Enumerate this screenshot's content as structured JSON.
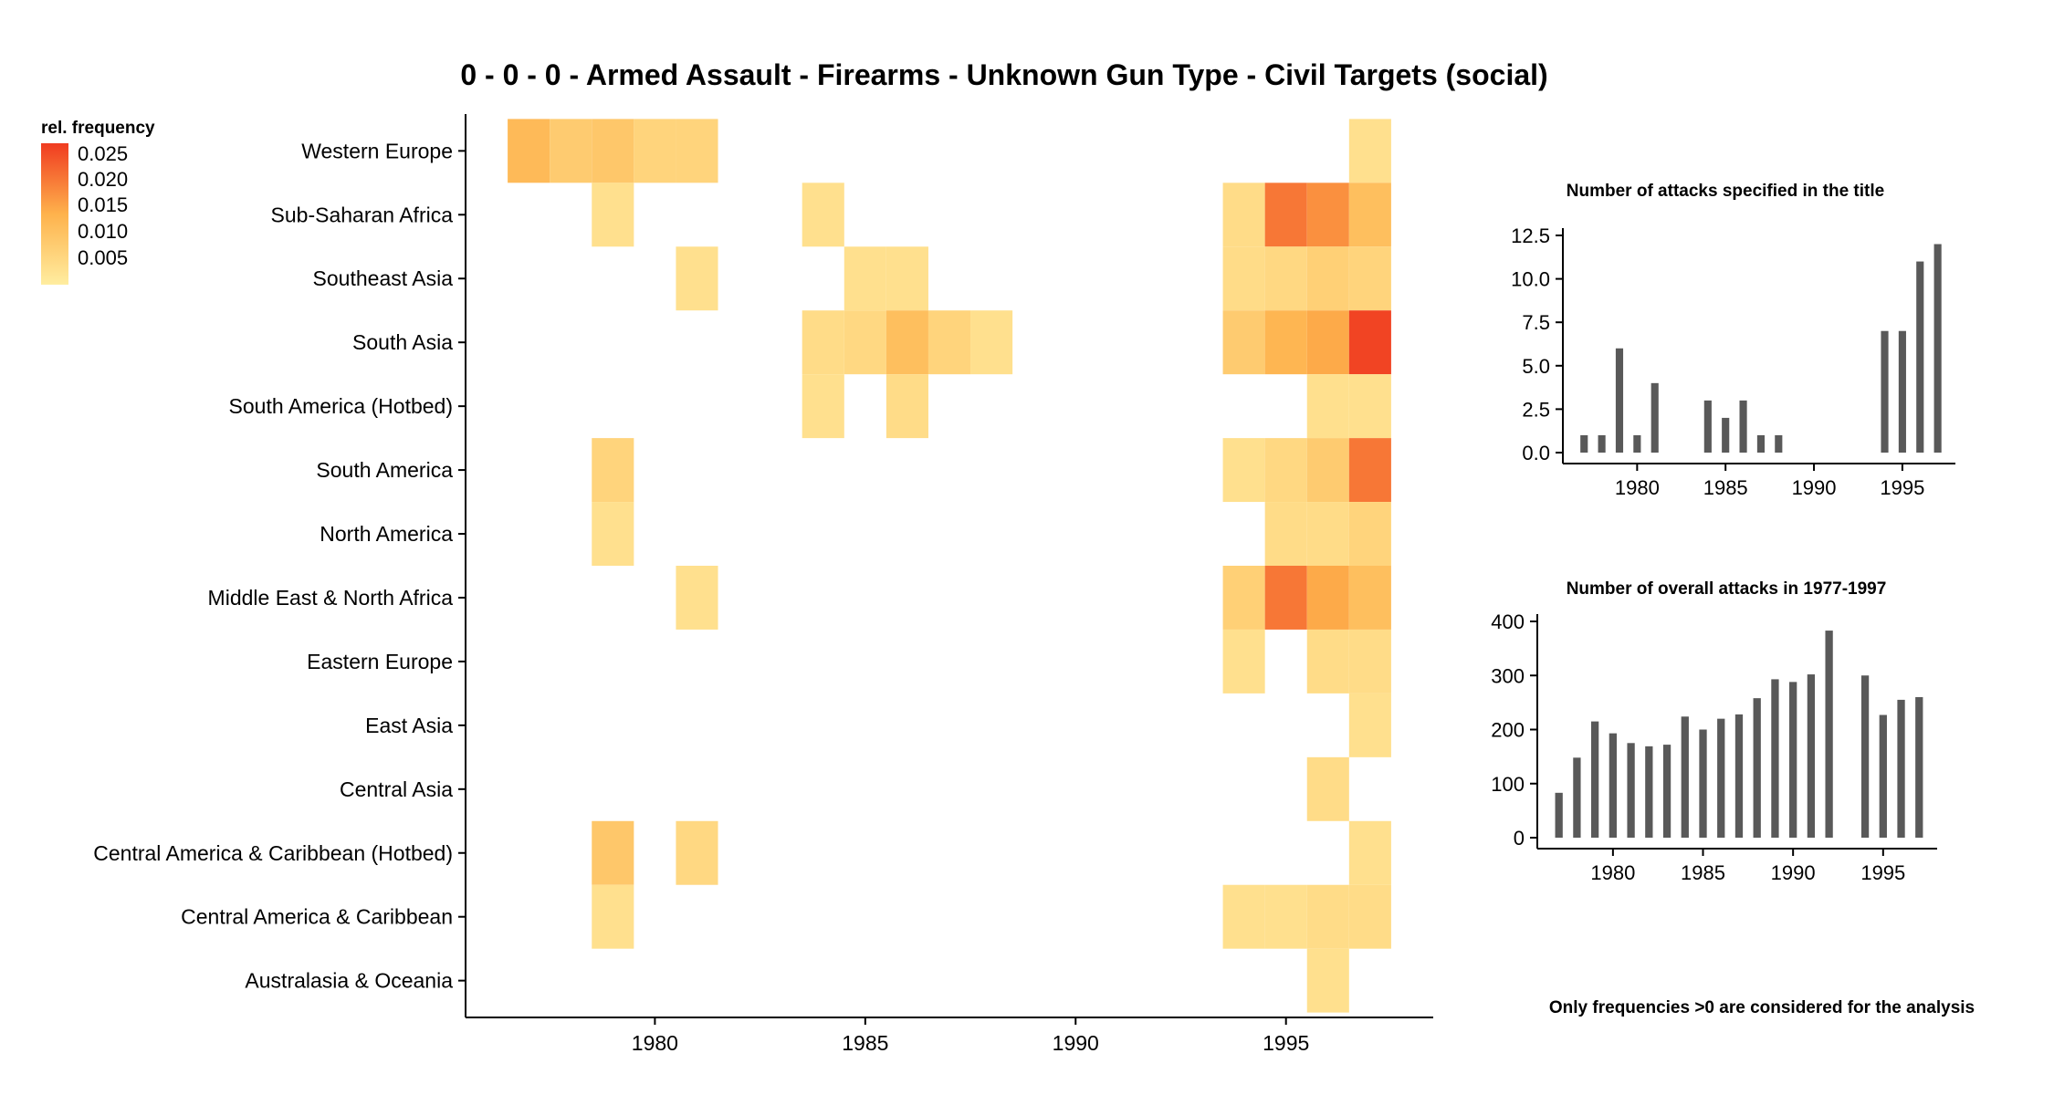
{
  "title": "0 - 0 - 0 - Armed Assault - Firearms - Unknown Gun Type - Civil Targets (social)",
  "footnote": "Only frequencies >0 are considered for the analysis",
  "colors": {
    "low": "#FFEDA0",
    "mid": "#FEB24C",
    "high": "#F03B20",
    "bar": "#595959"
  },
  "legend": {
    "title": "rel. frequency",
    "ticks": [
      "0.025",
      "0.020",
      "0.015",
      "0.010",
      "0.005"
    ]
  },
  "chart_data": [
    {
      "type": "heatmap",
      "title": "0 - 0 - 0 - Armed Assault - Firearms - Unknown Gun Type - Civil Targets (social)",
      "x_tick_labels": [
        "1980",
        "1985",
        "1990",
        "1995"
      ],
      "x_ticks": [
        1980,
        1985,
        1990,
        1995
      ],
      "xlim": [
        1975.5,
        1998.5
      ],
      "color_range": [
        0.0,
        0.028
      ],
      "regions": [
        "Western Europe",
        "Sub-Saharan Africa",
        "Southeast Asia",
        "South Asia",
        "South America (Hotbed)",
        "South America",
        "North America",
        "Middle East & North Africa",
        "Eastern Europe",
        "East Asia",
        "Central Asia",
        "Central America & Caribbean (Hotbed)",
        "Central America & Caribbean",
        "Australasia & Oceania"
      ],
      "cells": [
        {
          "region": "Western Europe",
          "year": 1977,
          "value": 0.012
        },
        {
          "region": "Western Europe",
          "year": 1978,
          "value": 0.008
        },
        {
          "region": "Western Europe",
          "year": 1979,
          "value": 0.009
        },
        {
          "region": "Western Europe",
          "year": 1980,
          "value": 0.006
        },
        {
          "region": "Western Europe",
          "year": 1981,
          "value": 0.006
        },
        {
          "region": "Western Europe",
          "year": 1997,
          "value": 0.003
        },
        {
          "region": "Sub-Saharan Africa",
          "year": 1979,
          "value": 0.003
        },
        {
          "region": "Sub-Saharan Africa",
          "year": 1984,
          "value": 0.003
        },
        {
          "region": "Sub-Saharan Africa",
          "year": 1994,
          "value": 0.004
        },
        {
          "region": "Sub-Saharan Africa",
          "year": 1995,
          "value": 0.021
        },
        {
          "region": "Sub-Saharan Africa",
          "year": 1996,
          "value": 0.018
        },
        {
          "region": "Sub-Saharan Africa",
          "year": 1997,
          "value": 0.011
        },
        {
          "region": "Southeast Asia",
          "year": 1981,
          "value": 0.003
        },
        {
          "region": "Southeast Asia",
          "year": 1985,
          "value": 0.003
        },
        {
          "region": "Southeast Asia",
          "year": 1986,
          "value": 0.003
        },
        {
          "region": "Southeast Asia",
          "year": 1994,
          "value": 0.004
        },
        {
          "region": "Southeast Asia",
          "year": 1995,
          "value": 0.005
        },
        {
          "region": "Southeast Asia",
          "year": 1996,
          "value": 0.007
        },
        {
          "region": "Southeast Asia",
          "year": 1997,
          "value": 0.006
        },
        {
          "region": "South Asia",
          "year": 1984,
          "value": 0.004
        },
        {
          "region": "South Asia",
          "year": 1985,
          "value": 0.005
        },
        {
          "region": "South Asia",
          "year": 1986,
          "value": 0.011
        },
        {
          "region": "South Asia",
          "year": 1987,
          "value": 0.006
        },
        {
          "region": "South Asia",
          "year": 1988,
          "value": 0.003
        },
        {
          "region": "South Asia",
          "year": 1994,
          "value": 0.008
        },
        {
          "region": "South Asia",
          "year": 1995,
          "value": 0.013
        },
        {
          "region": "South Asia",
          "year": 1996,
          "value": 0.015
        },
        {
          "region": "South Asia",
          "year": 1997,
          "value": 0.027
        },
        {
          "region": "South America (Hotbed)",
          "year": 1984,
          "value": 0.003
        },
        {
          "region": "South America (Hotbed)",
          "year": 1986,
          "value": 0.004
        },
        {
          "region": "South America (Hotbed)",
          "year": 1996,
          "value": 0.003
        },
        {
          "region": "South America (Hotbed)",
          "year": 1997,
          "value": 0.003
        },
        {
          "region": "South America",
          "year": 1979,
          "value": 0.006
        },
        {
          "region": "South America",
          "year": 1994,
          "value": 0.003
        },
        {
          "region": "South America",
          "year": 1995,
          "value": 0.005
        },
        {
          "region": "South America",
          "year": 1996,
          "value": 0.008
        },
        {
          "region": "South America",
          "year": 1997,
          "value": 0.021
        },
        {
          "region": "North America",
          "year": 1979,
          "value": 0.003
        },
        {
          "region": "North America",
          "year": 1995,
          "value": 0.004
        },
        {
          "region": "North America",
          "year": 1996,
          "value": 0.004
        },
        {
          "region": "North America",
          "year": 1997,
          "value": 0.006
        },
        {
          "region": "Middle East & North Africa",
          "year": 1981,
          "value": 0.003
        },
        {
          "region": "Middle East & North Africa",
          "year": 1994,
          "value": 0.007
        },
        {
          "region": "Middle East & North Africa",
          "year": 1995,
          "value": 0.021
        },
        {
          "region": "Middle East & North Africa",
          "year": 1996,
          "value": 0.015
        },
        {
          "region": "Middle East & North Africa",
          "year": 1997,
          "value": 0.011
        },
        {
          "region": "Eastern Europe",
          "year": 1994,
          "value": 0.003
        },
        {
          "region": "Eastern Europe",
          "year": 1996,
          "value": 0.004
        },
        {
          "region": "Eastern Europe",
          "year": 1997,
          "value": 0.004
        },
        {
          "region": "East Asia",
          "year": 1997,
          "value": 0.003
        },
        {
          "region": "Central Asia",
          "year": 1996,
          "value": 0.004
        },
        {
          "region": "Central America & Caribbean (Hotbed)",
          "year": 1979,
          "value": 0.009
        },
        {
          "region": "Central America & Caribbean (Hotbed)",
          "year": 1981,
          "value": 0.005
        },
        {
          "region": "Central America & Caribbean (Hotbed)",
          "year": 1997,
          "value": 0.003
        },
        {
          "region": "Central America & Caribbean",
          "year": 1979,
          "value": 0.003
        },
        {
          "region": "Central America & Caribbean",
          "year": 1994,
          "value": 0.003
        },
        {
          "region": "Central America & Caribbean",
          "year": 1995,
          "value": 0.003
        },
        {
          "region": "Central America & Caribbean",
          "year": 1996,
          "value": 0.004
        },
        {
          "region": "Central America & Caribbean",
          "year": 1997,
          "value": 0.004
        },
        {
          "region": "Australasia & Oceania",
          "year": 1996,
          "value": 0.003
        }
      ]
    },
    {
      "type": "bar",
      "title": "Number of attacks specified in the title",
      "x": [
        1977,
        1978,
        1979,
        1980,
        1981,
        1984,
        1985,
        1986,
        1987,
        1988,
        1994,
        1995,
        1996,
        1997
      ],
      "values": [
        1,
        1,
        6,
        1,
        4,
        3,
        2,
        3,
        1,
        1,
        7,
        7,
        11,
        12
      ],
      "xlim": [
        1975.8,
        1998.0
      ],
      "ylim": [
        0,
        12.5
      ],
      "x_ticks": [
        1980,
        1985,
        1990,
        1995
      ],
      "x_tick_labels": [
        "1980",
        "1985",
        "1990",
        "1995"
      ],
      "y_ticks": [
        0,
        2.5,
        5,
        7.5,
        10,
        12.5
      ],
      "y_tick_labels": [
        "0.0",
        "2.5",
        "5.0",
        "7.5",
        "10.0",
        "12.5"
      ]
    },
    {
      "type": "bar",
      "title": "Number of overall attacks in 1977-1997",
      "x": [
        1977,
        1978,
        1979,
        1980,
        1981,
        1982,
        1983,
        1984,
        1985,
        1986,
        1987,
        1988,
        1989,
        1990,
        1991,
        1992,
        1994,
        1995,
        1996,
        1997
      ],
      "values": [
        83,
        148,
        215,
        193,
        175,
        169,
        172,
        224,
        200,
        220,
        228,
        258,
        293,
        288,
        302,
        383,
        300,
        227,
        255,
        260
      ],
      "xlim": [
        1975.8,
        1998.0
      ],
      "ylim": [
        0,
        400
      ],
      "x_ticks": [
        1980,
        1985,
        1990,
        1995
      ],
      "x_tick_labels": [
        "1980",
        "1985",
        "1990",
        "1995"
      ],
      "y_ticks": [
        0,
        100,
        200,
        300,
        400
      ],
      "y_tick_labels": [
        "0",
        "100",
        "200",
        "300",
        "400"
      ]
    }
  ]
}
